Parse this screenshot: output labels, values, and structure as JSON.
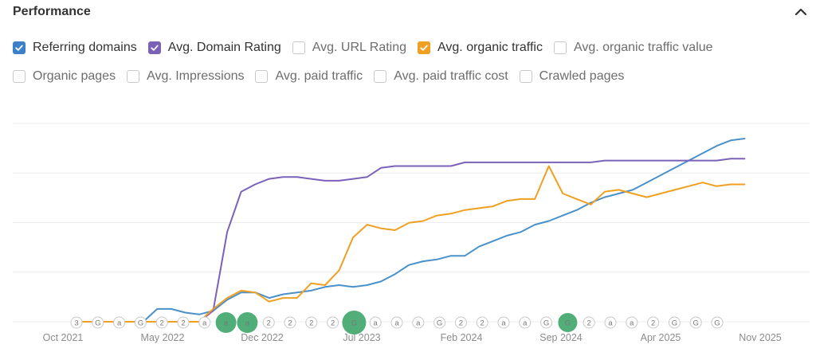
{
  "panel": {
    "title": "Performance"
  },
  "colors": {
    "blue": "#4a90c9",
    "purple": "#7b61b8",
    "orange": "#f0a020",
    "grid": "#ececec",
    "marker_green": "#3fa56a",
    "marker_light": "#a9d9b0"
  },
  "metrics": {
    "row1": [
      {
        "label": "Referring domains",
        "checked": true,
        "color": "#3b80c8"
      },
      {
        "label": "Avg. Domain Rating",
        "checked": true,
        "color": "#7b61b8"
      },
      {
        "label": "Avg. URL Rating",
        "checked": false
      },
      {
        "label": "Avg. organic traffic",
        "checked": true,
        "color": "#f0a020"
      },
      {
        "label": "Avg. organic traffic value",
        "checked": false
      }
    ],
    "row2": [
      {
        "label": "Organic pages",
        "checked": false
      },
      {
        "label": "Avg. Impressions",
        "checked": false
      },
      {
        "label": "Avg. paid traffic",
        "checked": false
      },
      {
        "label": "Avg. paid traffic cost",
        "checked": false
      },
      {
        "label": "Crawled pages",
        "checked": false
      }
    ]
  },
  "chart_data": {
    "type": "line",
    "title": "Performance",
    "x_tick_labels": [
      "Oct 2021",
      "May 2022",
      "Dec 2022",
      "Jul 2023",
      "Feb 2024",
      "Sep 2024",
      "Apr 2025",
      "Nov 2025"
    ],
    "x_range": [
      0,
      49
    ],
    "y_range": [
      0,
      100
    ],
    "gridlines": 4,
    "y_axis_labels": "not shown",
    "series": [
      {
        "name": "Referring domains",
        "color": "#4a90c9",
        "values": [
          0,
          0,
          0,
          0,
          0,
          0,
          7,
          7,
          5,
          4,
          6,
          12,
          16,
          16,
          13,
          15,
          16,
          17,
          19,
          20,
          19,
          20,
          22,
          26,
          31,
          33,
          34,
          36,
          36,
          41,
          44,
          47,
          49,
          53,
          55,
          58,
          61,
          65,
          68,
          70,
          72,
          76,
          80,
          84,
          88,
          92,
          96,
          99,
          100
        ]
      },
      {
        "name": "Avg. Domain Rating",
        "color": "#7b61b8",
        "values": [
          0,
          0,
          0,
          0,
          0,
          0,
          0,
          0,
          0,
          0,
          6,
          49,
          71,
          75,
          78,
          79,
          79,
          78,
          77,
          77,
          78,
          79,
          84,
          85,
          85,
          85,
          85,
          85,
          87,
          87,
          87,
          87,
          87,
          87,
          87,
          87,
          87,
          87,
          88,
          88,
          88,
          88,
          88,
          88,
          88,
          88,
          88,
          89,
          89
        ]
      },
      {
        "name": "Avg. organic traffic",
        "color": "#f0a020",
        "values": [
          0,
          0,
          0,
          0,
          0,
          0,
          0,
          0,
          0,
          0,
          7,
          13,
          17,
          16,
          11,
          13,
          13,
          21,
          20,
          28,
          46,
          53,
          51,
          50,
          54,
          55,
          58,
          59,
          61,
          62,
          63,
          66,
          67,
          67,
          85,
          70,
          67,
          64,
          71,
          72,
          70,
          68,
          70,
          72,
          74,
          76,
          74,
          75,
          75
        ]
      }
    ],
    "timeline_markers": [
      "3",
      "G",
      "a",
      "G",
      "2",
      "2",
      "a",
      "a",
      "a",
      "2",
      "2",
      "2",
      "2",
      "G",
      "a",
      "a",
      "a",
      "G",
      "2",
      "2",
      "a",
      "a",
      "G",
      "G",
      "2",
      "a",
      "a",
      "2",
      "G",
      "G",
      "G"
    ]
  }
}
